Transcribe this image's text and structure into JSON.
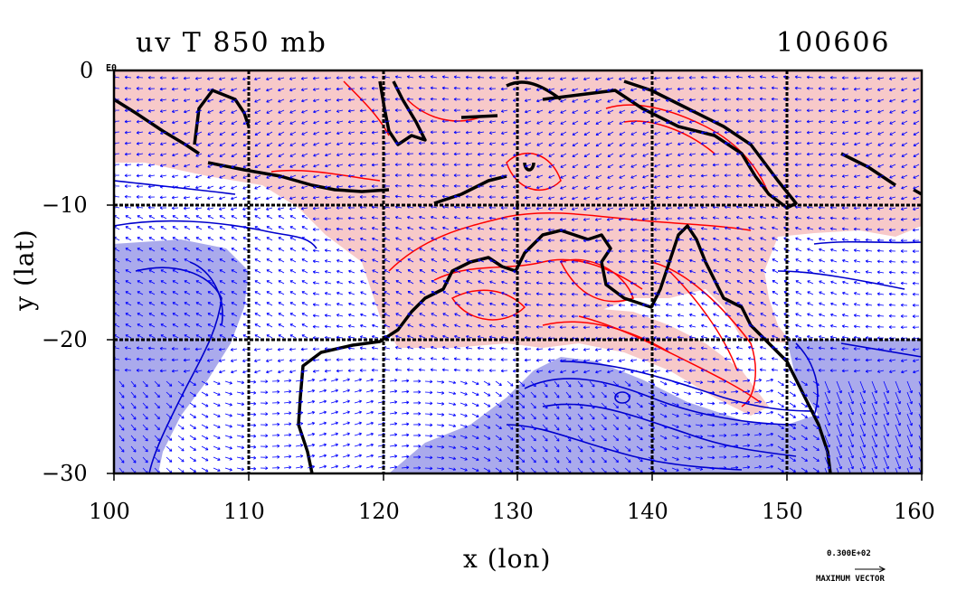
{
  "title_left": "uv T 850 mb",
  "title_right": "100606",
  "corner_label": "E0",
  "x_axis": {
    "label": "x (lon)",
    "ticks": [
      "100",
      "110",
      "120",
      "130",
      "140",
      "150",
      "160"
    ],
    "range": [
      100,
      160
    ]
  },
  "y_axis": {
    "label": "y (lat)",
    "ticks": [
      "0",
      "−10",
      "−20",
      "−30"
    ],
    "range": [
      -30,
      0
    ]
  },
  "legend": {
    "magnitude": "0.300E+02",
    "caption": "MAXIMUM VECTOR"
  },
  "colors": {
    "warm_fill": "#f7c9c9",
    "cool_fill": "#aaaaec",
    "warm_contour": "#ff0000",
    "cool_contour": "#0000cc",
    "vector": "#0000ff",
    "coast": "#000000"
  }
}
